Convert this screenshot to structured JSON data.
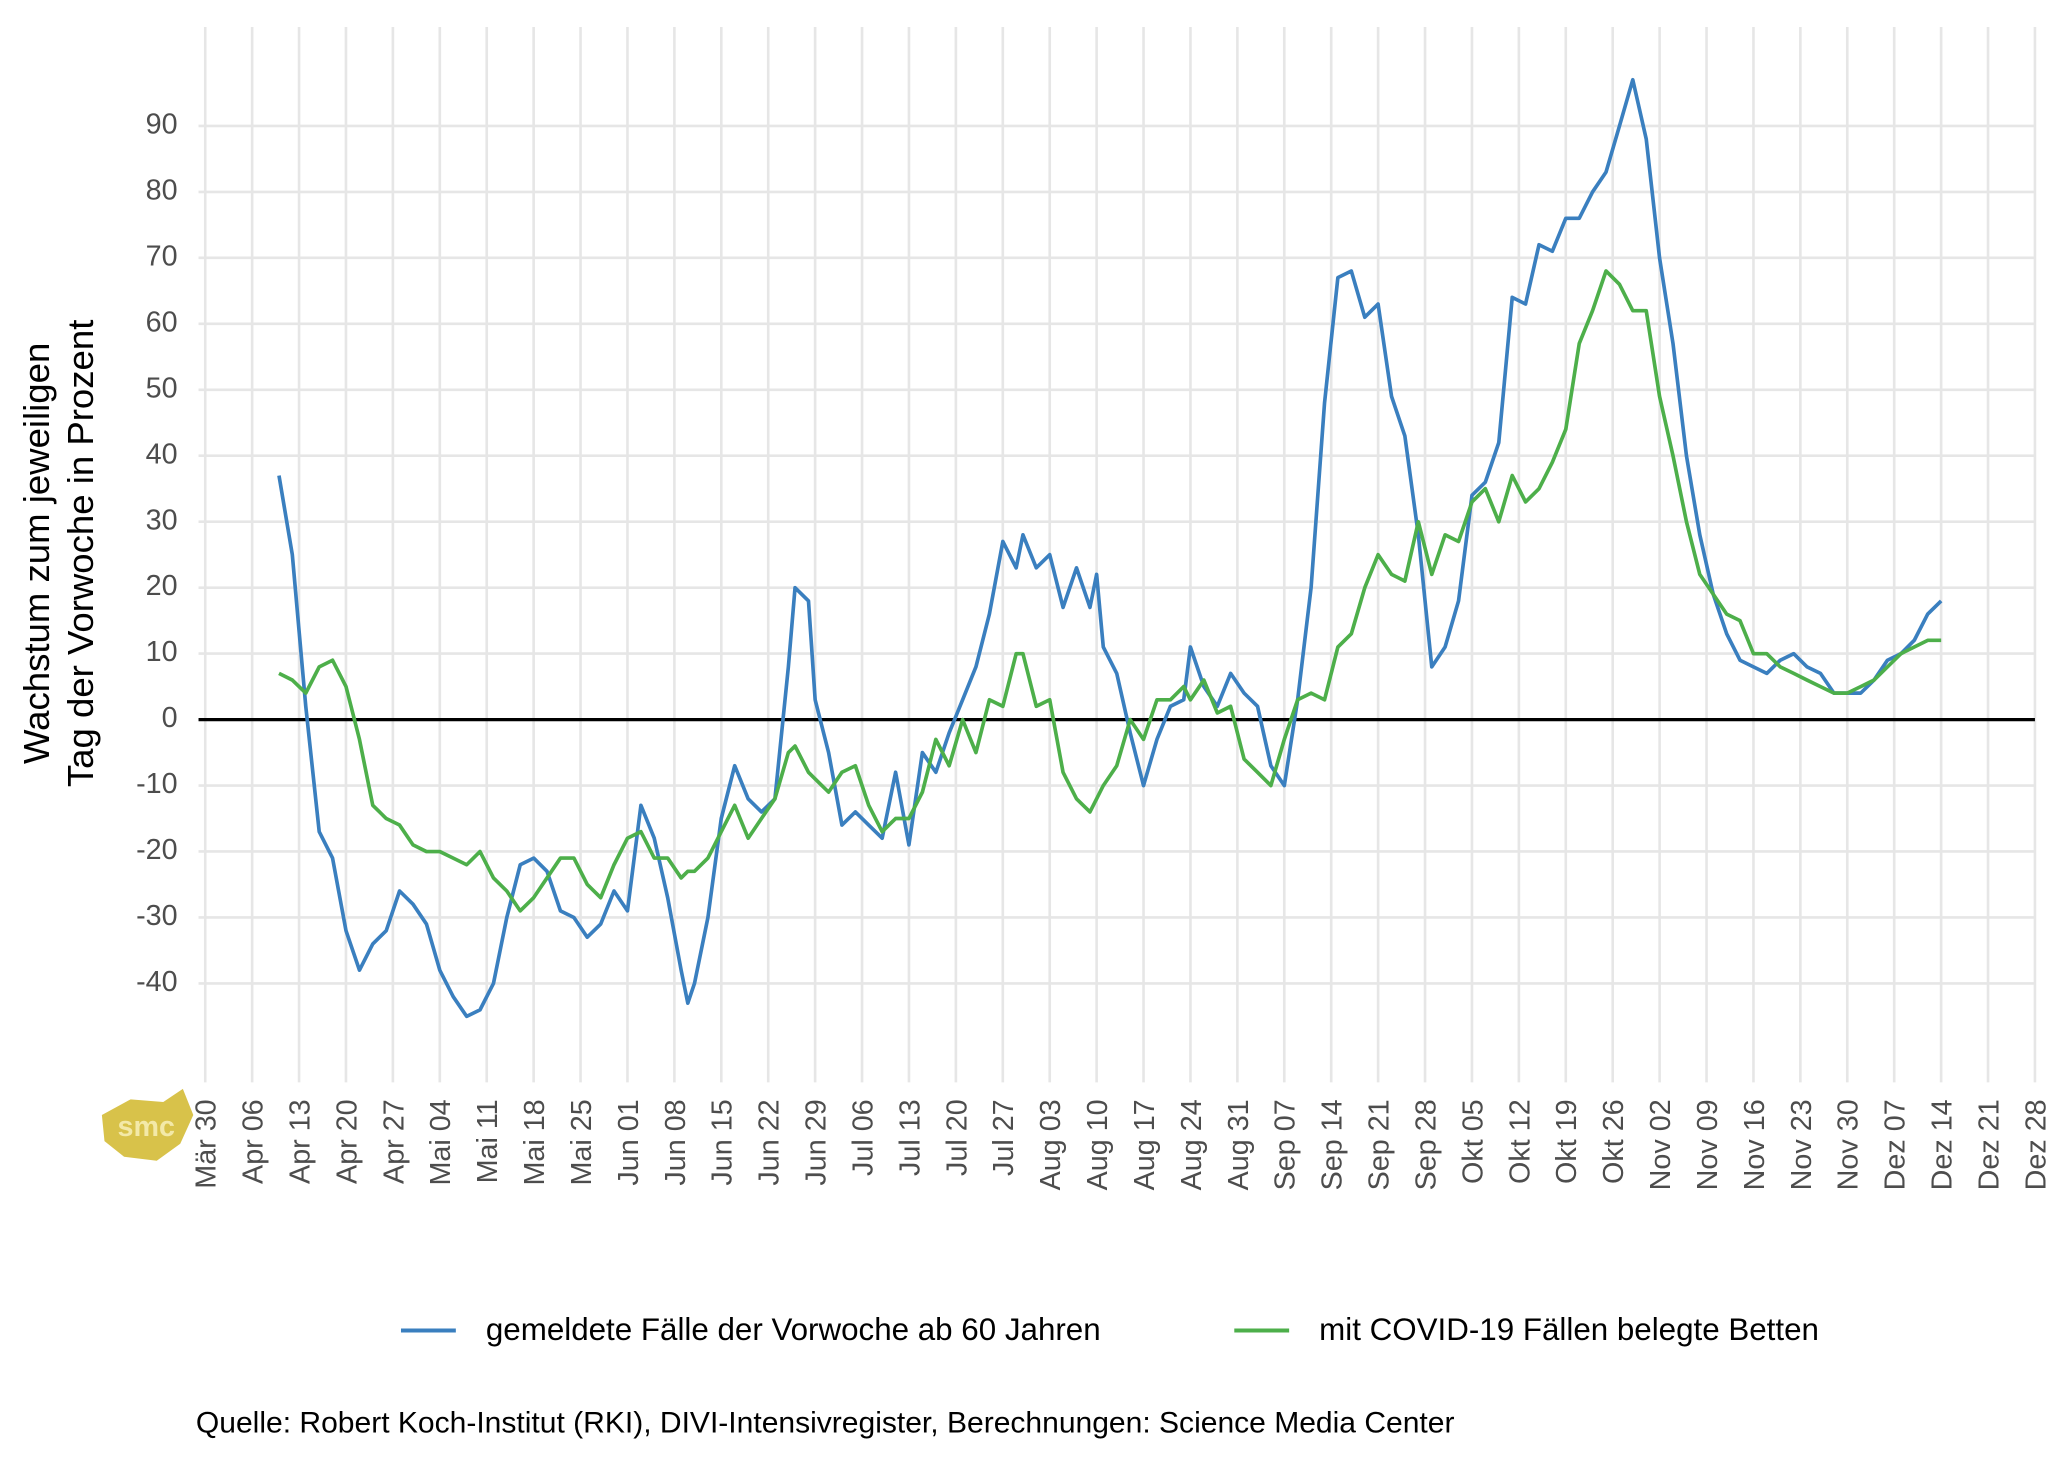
{
  "chart_data": {
    "type": "line",
    "y_label_lines": [
      "Wachstum zum jeweiligen",
      "Tag der Vorwoche in Prozent"
    ],
    "caption": "Quelle: Robert Koch-Institut (RKI), DIVI-Intensivregister, Berechnungen: Science Media Center",
    "logo": "smc",
    "x": [
      "04-10",
      "04-12",
      "04-14",
      "04-16",
      "04-18",
      "04-20",
      "04-22",
      "04-24",
      "04-26",
      "04-28",
      "04-30",
      "05-02",
      "05-04",
      "05-06",
      "05-08",
      "05-10",
      "05-12",
      "05-14",
      "05-16",
      "05-18",
      "05-20",
      "05-22",
      "05-24",
      "05-26",
      "05-28",
      "05-30",
      "06-01",
      "06-03",
      "06-05",
      "06-07",
      "06-09",
      "06-10",
      "06-11",
      "06-13",
      "06-15",
      "06-17",
      "06-19",
      "06-21",
      "06-23",
      "06-25",
      "06-26",
      "06-28",
      "06-29",
      "07-01",
      "07-03",
      "07-05",
      "07-07",
      "07-09",
      "07-11",
      "07-13",
      "07-15",
      "07-17",
      "07-19",
      "07-21",
      "07-23",
      "07-25",
      "07-27",
      "07-29",
      "07-30",
      "08-01",
      "08-03",
      "08-05",
      "08-07",
      "08-09",
      "08-10",
      "08-11",
      "08-13",
      "08-15",
      "08-17",
      "08-19",
      "08-21",
      "08-23",
      "08-24",
      "08-26",
      "08-28",
      "08-30",
      "09-01",
      "09-03",
      "09-05",
      "09-07",
      "09-09",
      "09-11",
      "09-13",
      "09-15",
      "09-17",
      "09-19",
      "09-21",
      "09-23",
      "09-25",
      "09-27",
      "09-29",
      "10-01",
      "10-03",
      "10-05",
      "10-07",
      "10-09",
      "10-11",
      "10-13",
      "10-15",
      "10-17",
      "10-19",
      "10-21",
      "10-23",
      "10-25",
      "10-27",
      "10-29",
      "10-31",
      "11-02",
      "11-04",
      "11-06",
      "11-08",
      "11-10",
      "11-12",
      "11-14",
      "11-16",
      "11-18",
      "11-20",
      "11-22",
      "11-24",
      "11-26",
      "11-28",
      "11-30",
      "12-02",
      "12-04",
      "12-06",
      "12-08",
      "12-10",
      "12-12",
      "12-14"
    ],
    "series": [
      {
        "name": "gemeldete Fälle der Vorwoche ab 60 Jahren",
        "color": "#3a7fbf",
        "values": [
          37,
          25,
          2,
          -17,
          -21,
          -32,
          -38,
          -34,
          -32,
          -26,
          -28,
          -31,
          -38,
          -42,
          -45,
          -44,
          -40,
          -30,
          -22,
          -21,
          -23,
          -29,
          -30,
          -33,
          -31,
          -26,
          -29,
          -13,
          -18,
          -27,
          -38,
          -43,
          -40,
          -30,
          -15,
          -7,
          -12,
          -14,
          -12,
          8,
          20,
          18,
          3,
          -5,
          -16,
          -14,
          -16,
          -18,
          -8,
          -19,
          -5,
          -8,
          -2,
          3,
          8,
          16,
          27,
          23,
          28,
          23,
          25,
          17,
          23,
          17,
          22,
          11,
          7,
          -2,
          -10,
          -3,
          2,
          3,
          11,
          5,
          2,
          7,
          4,
          2,
          -7,
          -10,
          3,
          20,
          48,
          67,
          68,
          61,
          63,
          49,
          43,
          28,
          8,
          11,
          18,
          34,
          36,
          42,
          64,
          63,
          72,
          71,
          76,
          76,
          80,
          83,
          90,
          97,
          88,
          70,
          57,
          40,
          28,
          19,
          13,
          9,
          8,
          7,
          9,
          10,
          8,
          7,
          4,
          4,
          4,
          6,
          9,
          10,
          12,
          16,
          18
        ]
      },
      {
        "name": "mit COVID-19 Fällen belegte Betten",
        "color": "#4daf4a",
        "values": [
          7,
          6,
          4,
          8,
          9,
          5,
          -3,
          -13,
          -15,
          -16,
          -19,
          -20,
          -20,
          -21,
          -22,
          -20,
          -24,
          -26,
          -29,
          -27,
          -24,
          -21,
          -21,
          -25,
          -27,
          -22,
          -18,
          -17,
          -21,
          -21,
          -24,
          -23,
          -23,
          -21,
          -17,
          -13,
          -18,
          -15,
          -12,
          -5,
          -4,
          -8,
          -9,
          -11,
          -8,
          -7,
          -13,
          -17,
          -15,
          -15,
          -11,
          -3,
          -7,
          0,
          -5,
          3,
          2,
          10,
          10,
          2,
          3,
          -8,
          -12,
          -14,
          -12,
          -10,
          -7,
          0,
          -3,
          3,
          3,
          5,
          3,
          6,
          1,
          2,
          -6,
          -8,
          -10,
          -3,
          3,
          4,
          3,
          11,
          13,
          20,
          25,
          22,
          21,
          30,
          22,
          28,
          27,
          33,
          35,
          30,
          37,
          33,
          35,
          39,
          44,
          57,
          62,
          68,
          66,
          62,
          62,
          49,
          40,
          30,
          22,
          19,
          16,
          15,
          10,
          10,
          8,
          7,
          6,
          5,
          4,
          4,
          5,
          6,
          8,
          10,
          11,
          12,
          12
        ]
      }
    ],
    "xlim": [
      "03-29",
      "12-28"
    ],
    "xticks": [
      {
        "value": "03-30",
        "label": "Mär 30"
      },
      {
        "value": "04-06",
        "label": "Apr 06"
      },
      {
        "value": "04-13",
        "label": "Apr 13"
      },
      {
        "value": "04-20",
        "label": "Apr 20"
      },
      {
        "value": "04-27",
        "label": "Apr 27"
      },
      {
        "value": "05-04",
        "label": "Mai 04"
      },
      {
        "value": "05-11",
        "label": "Mai 11"
      },
      {
        "value": "05-18",
        "label": "Mai 18"
      },
      {
        "value": "05-25",
        "label": "Mai 25"
      },
      {
        "value": "06-01",
        "label": "Jun 01"
      },
      {
        "value": "06-08",
        "label": "Jun 08"
      },
      {
        "value": "06-15",
        "label": "Jun 15"
      },
      {
        "value": "06-22",
        "label": "Jun 22"
      },
      {
        "value": "06-29",
        "label": "Jun 29"
      },
      {
        "value": "07-06",
        "label": "Jul 06"
      },
      {
        "value": "07-13",
        "label": "Jul 13"
      },
      {
        "value": "07-20",
        "label": "Jul 20"
      },
      {
        "value": "07-27",
        "label": "Jul 27"
      },
      {
        "value": "08-03",
        "label": "Aug 03"
      },
      {
        "value": "08-10",
        "label": "Aug 10"
      },
      {
        "value": "08-17",
        "label": "Aug 17"
      },
      {
        "value": "08-24",
        "label": "Aug 24"
      },
      {
        "value": "08-31",
        "label": "Aug 31"
      },
      {
        "value": "09-07",
        "label": "Sep 07"
      },
      {
        "value": "09-14",
        "label": "Sep 14"
      },
      {
        "value": "09-21",
        "label": "Sep 21"
      },
      {
        "value": "09-28",
        "label": "Sep 28"
      },
      {
        "value": "10-05",
        "label": "Okt 05"
      },
      {
        "value": "10-12",
        "label": "Okt 12"
      },
      {
        "value": "10-19",
        "label": "Okt 19"
      },
      {
        "value": "10-26",
        "label": "Okt 26"
      },
      {
        "value": "11-02",
        "label": "Nov 02"
      },
      {
        "value": "11-09",
        "label": "Nov 09"
      },
      {
        "value": "11-16",
        "label": "Nov 16"
      },
      {
        "value": "11-23",
        "label": "Nov 23"
      },
      {
        "value": "11-30",
        "label": "Nov 30"
      },
      {
        "value": "12-07",
        "label": "Dez 07"
      },
      {
        "value": "12-14",
        "label": "Dez 14"
      },
      {
        "value": "12-21",
        "label": "Dez 21"
      },
      {
        "value": "12-28",
        "label": "Dez 28"
      }
    ],
    "ylim": [
      -55,
      105
    ],
    "yticks": [
      -40,
      -30,
      -20,
      -10,
      0,
      10,
      20,
      30,
      40,
      50,
      60,
      70,
      80,
      90
    ],
    "hline": 0,
    "grid": true,
    "legend": "bottom"
  }
}
